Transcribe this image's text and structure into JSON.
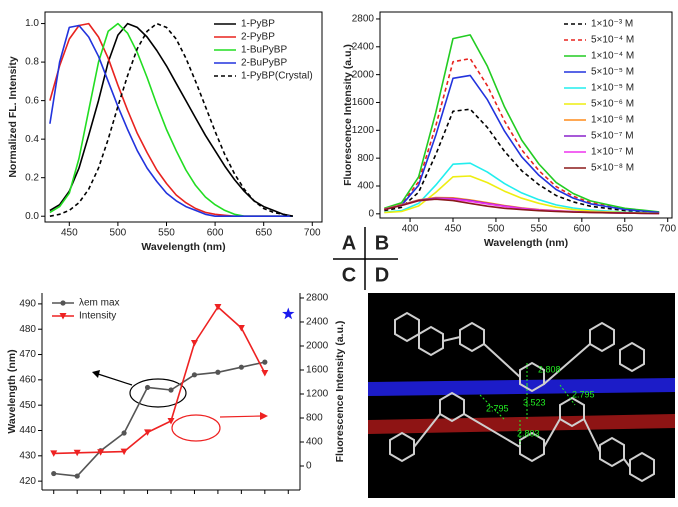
{
  "panel_labels": [
    "A",
    "B",
    "C",
    "D"
  ],
  "chart_data": [
    {
      "type": "line",
      "xlabel": "Wavelength (nm)",
      "ylabel": "Normalized FL. Intensity",
      "x": [
        430,
        440,
        450,
        460,
        470,
        480,
        490,
        500,
        510,
        520,
        530,
        540,
        550,
        560,
        570,
        580,
        590,
        600,
        610,
        620,
        630,
        640,
        650,
        660,
        670,
        680
      ],
      "xlim": [
        425,
        710
      ],
      "xticks": [
        450,
        500,
        550,
        600,
        650,
        700
      ],
      "ylim": [
        -0.03,
        1.06
      ],
      "yticks": [
        {
          "value": 0,
          "label": "0.0"
        },
        {
          "value": 0.2,
          "label": "0.2"
        },
        {
          "value": 0.4,
          "label": "0.4"
        },
        {
          "value": 0.6,
          "label": "0.6"
        },
        {
          "value": 0.8,
          "label": "0.8"
        },
        {
          "value": 1,
          "label": "1.0"
        }
      ],
      "legend": "upper right",
      "series": [
        {
          "name": "1-PyBP",
          "color": "#000000",
          "dash": false,
          "values": [
            0.03,
            0.06,
            0.13,
            0.25,
            0.42,
            0.6,
            0.8,
            0.94,
            1.0,
            0.98,
            0.93,
            0.86,
            0.78,
            0.69,
            0.6,
            0.51,
            0.42,
            0.34,
            0.26,
            0.19,
            0.13,
            0.08,
            0.05,
            0.03,
            0.01,
            0
          ]
        },
        {
          "name": "2-PyBP",
          "color": "#e8231f",
          "dash": false,
          "values": [
            0.6,
            0.78,
            0.92,
            0.99,
            1.0,
            0.93,
            0.82,
            0.68,
            0.55,
            0.43,
            0.33,
            0.24,
            0.17,
            0.11,
            0.07,
            0.04,
            0.02,
            0.01,
            0.005,
            0,
            0,
            0,
            0,
            0,
            0,
            0
          ]
        },
        {
          "name": "1-BuPyBP",
          "color": "#22dd22",
          "dash": false,
          "values": [
            0.02,
            0.05,
            0.12,
            0.3,
            0.55,
            0.8,
            0.96,
            1.0,
            0.95,
            0.85,
            0.72,
            0.58,
            0.45,
            0.34,
            0.24,
            0.16,
            0.1,
            0.06,
            0.03,
            0.01,
            0,
            0,
            0,
            0,
            0,
            0
          ]
        },
        {
          "name": "2-BuPyBP",
          "color": "#2233dd",
          "dash": false,
          "values": [
            0.48,
            0.8,
            0.98,
            0.99,
            0.93,
            0.83,
            0.7,
            0.57,
            0.45,
            0.34,
            0.25,
            0.18,
            0.12,
            0.08,
            0.05,
            0.03,
            0.01,
            0,
            0,
            0,
            0,
            0,
            0,
            0,
            0,
            0
          ]
        },
        {
          "name": "1-PyBP(Crystal)",
          "color": "#000000",
          "dash": true,
          "values": [
            0,
            0.01,
            0.03,
            0.07,
            0.14,
            0.25,
            0.4,
            0.57,
            0.73,
            0.87,
            0.96,
            1.0,
            0.98,
            0.92,
            0.82,
            0.7,
            0.57,
            0.44,
            0.32,
            0.22,
            0.14,
            0.08,
            0.04,
            0.02,
            0.01,
            0
          ]
        }
      ]
    },
    {
      "type": "line",
      "xlabel": "Wavelength (nm)",
      "ylabel": "Fluorescence Intensity (a.u.)",
      "x": [
        370,
        390,
        410,
        430,
        450,
        470,
        490,
        510,
        530,
        550,
        570,
        590,
        610,
        630,
        650,
        670,
        690
      ],
      "xlim": [
        365,
        705
      ],
      "xticks": [
        400,
        450,
        500,
        550,
        600,
        650,
        700
      ],
      "ylim": [
        -60,
        2900
      ],
      "yticks": [
        0,
        400,
        800,
        1200,
        1600,
        2000,
        2400,
        2800
      ],
      "legend": "upper right",
      "series": [
        {
          "name": "1×10⁻³ M",
          "color": "#000000",
          "dash": true,
          "values": [
            47,
            93,
            310,
            853,
            1473,
            1504,
            1240,
            899,
            620,
            419,
            264,
            171,
            109,
            78,
            47,
            31,
            16
          ]
        },
        {
          "name": "5×10⁻⁴ M",
          "color": "#e8231f",
          "dash": true,
          "values": [
            69,
            138,
            460,
            1265,
            2185,
            2231,
            1840,
            1334,
            920,
            621,
            391,
            253,
            161,
            115,
            69,
            46,
            23
          ]
        },
        {
          "name": "1×10⁻⁴ M",
          "color": "#22cc22",
          "dash": false,
          "values": [
            80,
            159,
            530,
            1458,
            2518,
            2571,
            2120,
            1537,
            1060,
            716,
            451,
            292,
            186,
            133,
            80,
            53,
            27
          ]
        },
        {
          "name": "5×10⁻⁵ M",
          "color": "#2233dd",
          "dash": false,
          "values": [
            62,
            123,
            410,
            1128,
            1948,
            1989,
            1640,
            1189,
            820,
            554,
            349,
            226,
            144,
            103,
            62,
            41,
            21
          ]
        },
        {
          "name": "1×10⁻⁵ M",
          "color": "#22eeee",
          "dash": false,
          "values": [
            23,
            45,
            150,
            413,
            713,
            728,
            600,
            435,
            300,
            203,
            128,
            83,
            53,
            38,
            23,
            15,
            8
          ]
        },
        {
          "name": "5×10⁻⁶ M",
          "color": "#eeee11",
          "dash": false,
          "values": [
            17,
            34,
            112,
            308,
            532,
            543,
            448,
            325,
            224,
            151,
            95,
            62,
            39,
            28,
            17,
            11,
            6
          ]
        },
        {
          "name": "1×10⁻⁶ M",
          "color": "#ff8c1a",
          "dash": false,
          "values": [
            70,
            130,
            200,
            235,
            230,
            200,
            160,
            120,
            85,
            60,
            45,
            32,
            24,
            18,
            12,
            9,
            6
          ]
        },
        {
          "name": "5×10⁻⁷ M",
          "color": "#8a22cc",
          "dash": false,
          "values": [
            65,
            125,
            195,
            225,
            220,
            190,
            150,
            112,
            80,
            57,
            42,
            30,
            22,
            16,
            11,
            8,
            5
          ]
        },
        {
          "name": "1×10⁻⁷ M",
          "color": "#ee33ee",
          "dash": false,
          "values": [
            62,
            120,
            185,
            215,
            210,
            180,
            142,
            106,
            76,
            54,
            40,
            28,
            21,
            15,
            10,
            7,
            5
          ]
        },
        {
          "name": "5×10⁻⁸ M",
          "color": "#8b1a1a",
          "dash": false,
          "values": [
            60,
            120,
            190,
            210,
            190,
            150,
            110,
            80,
            60,
            45,
            35,
            25,
            20,
            15,
            10,
            8,
            5
          ]
        }
      ]
    },
    {
      "type": "line",
      "ylabel": "Wavelength (nm)",
      "y2label": "Fluorescence Intensity (a.u.)",
      "categories": [
        null,
        null,
        null,
        null,
        null,
        null,
        null,
        null,
        null,
        null,
        null
      ],
      "ylim": [
        416.5,
        494.3
      ],
      "yticks": [
        420,
        430,
        440,
        450,
        460,
        470,
        480,
        490
      ],
      "y2lim": [
        -400,
        2883
      ],
      "y2ticks": [
        0,
        400,
        800,
        1200,
        1600,
        2000,
        2400,
        2800
      ],
      "legend": "upper left",
      "series": [
        {
          "name": "λem max",
          "color": "#555555",
          "marker": "circle",
          "values": [
            423,
            422,
            432,
            439,
            457,
            456,
            462,
            463,
            465,
            467,
            null
          ]
        },
        {
          "name": "Intensity",
          "color": "#ee2222",
          "marker": "triangle-down",
          "axis": "y2",
          "values": [
            210,
            220,
            230,
            240,
            560,
            750,
            2050,
            2650,
            2300,
            1550,
            null
          ]
        },
        {
          "color": "#1a1aee",
          "marker": "star",
          "values": [
            null,
            null,
            null,
            null,
            null,
            null,
            null,
            null,
            null,
            null,
            486
          ]
        }
      ]
    }
  ],
  "structure_image": {
    "distance_labels": [
      "2.808",
      "3.523",
      "2.795",
      "2.795",
      "2.803"
    ]
  }
}
